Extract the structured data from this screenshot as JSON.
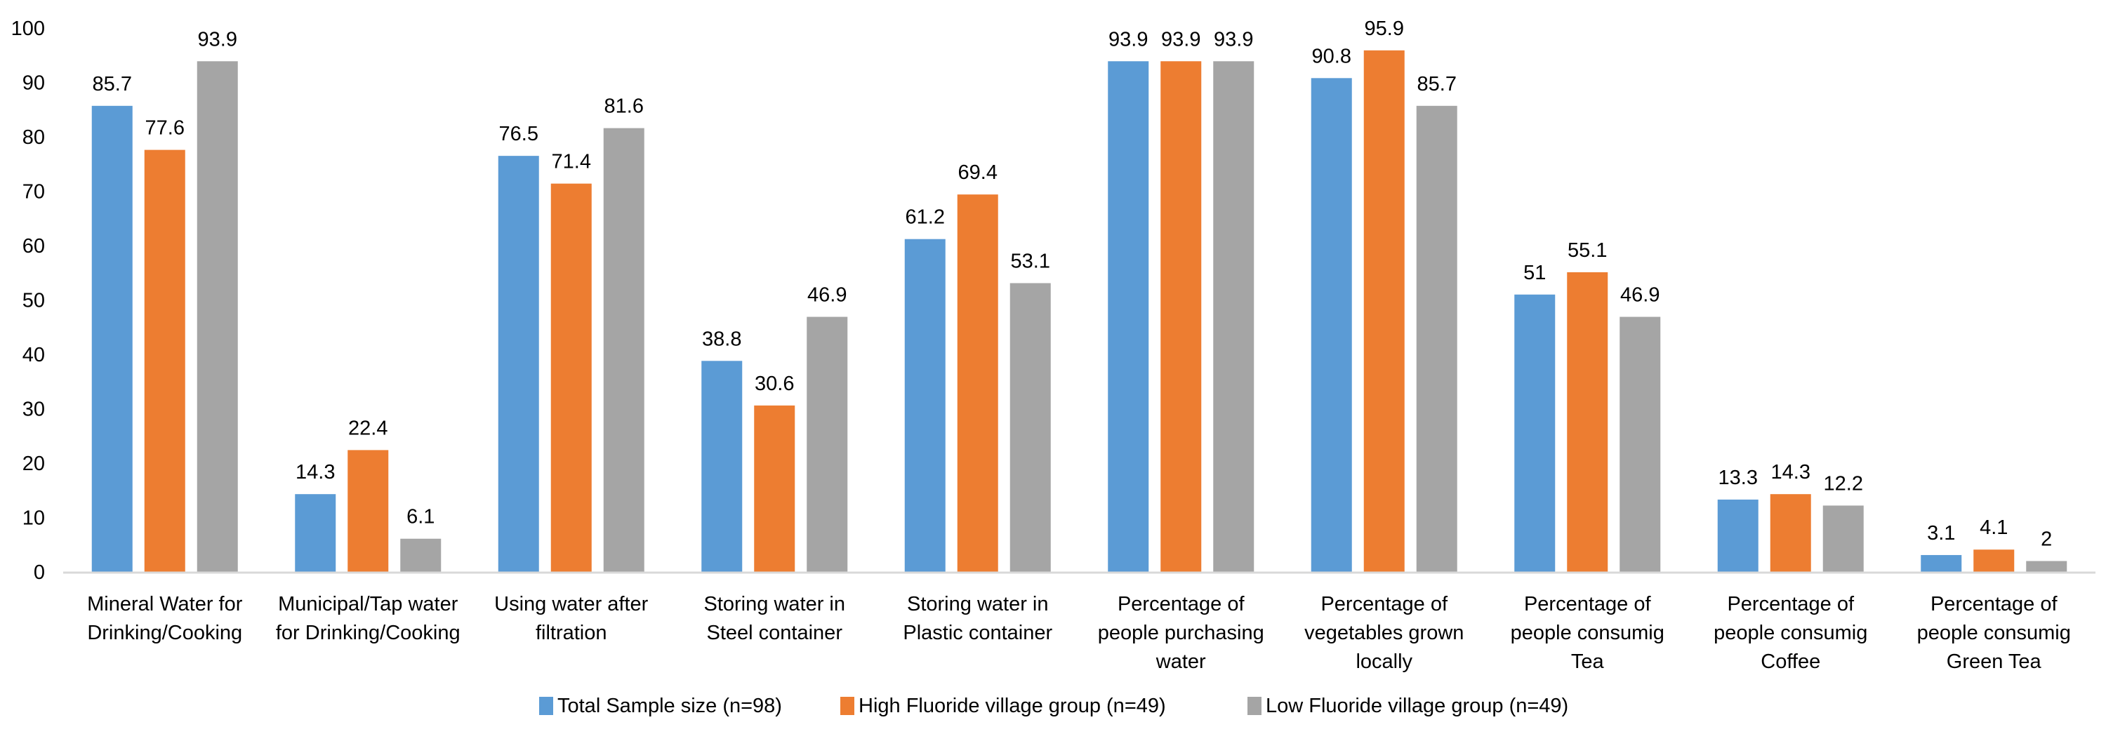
{
  "chart_data": {
    "type": "bar",
    "title": "",
    "xlabel": "",
    "ylabel": "",
    "ylim": [
      0,
      100
    ],
    "yticks": [
      0,
      10,
      20,
      30,
      40,
      50,
      60,
      70,
      80,
      90,
      100
    ],
    "grid": false,
    "legend_position": "bottom",
    "categories": [
      [
        "Mineral Water for",
        "Drinking/Cooking"
      ],
      [
        "Municipal/Tap water",
        "for Drinking/Cooking"
      ],
      [
        "Using water after",
        "filtration"
      ],
      [
        "Storing water in",
        "Steel container"
      ],
      [
        "Storing water in",
        "Plastic container"
      ],
      [
        "Percentage of",
        "people purchasing",
        "water"
      ],
      [
        "Percentage of",
        "vegetables grown",
        "locally"
      ],
      [
        "Percentage of",
        "people consumig",
        "Tea"
      ],
      [
        "Percentage of",
        "people consumig",
        "Coffee"
      ],
      [
        "Percentage of",
        "people consumig",
        "Green Tea"
      ]
    ],
    "series": [
      {
        "name": "Total Sample size (n=98)",
        "color": "#5B9BD5",
        "values": [
          85.7,
          14.3,
          76.5,
          38.8,
          61.2,
          93.9,
          90.8,
          51,
          13.3,
          3.1
        ],
        "labels": [
          "85.7",
          "14.3",
          "76.5",
          "38.8",
          "61.2",
          "93.9",
          "90.8",
          "51",
          "13.3",
          "3.1"
        ]
      },
      {
        "name": "High Fluoride village group (n=49)",
        "color": "#ED7D31",
        "values": [
          77.6,
          22.4,
          71.4,
          30.6,
          69.4,
          93.9,
          95.9,
          55.1,
          14.3,
          4.1
        ],
        "labels": [
          "77.6",
          "22.4",
          "71.4",
          "30.6",
          "69.4",
          "93.9",
          "95.9",
          "55.1",
          "14.3",
          "4.1"
        ]
      },
      {
        "name": "Low Fluoride village group (n=49)",
        "color": "#A5A5A5",
        "values": [
          93.9,
          6.1,
          81.6,
          46.9,
          53.1,
          93.9,
          85.7,
          46.9,
          12.2,
          2
        ],
        "labels": [
          "93.9",
          "6.1",
          "81.6",
          "46.9",
          "53.1",
          "93.9",
          "85.7",
          "46.9",
          "12.2",
          "2"
        ]
      }
    ]
  }
}
